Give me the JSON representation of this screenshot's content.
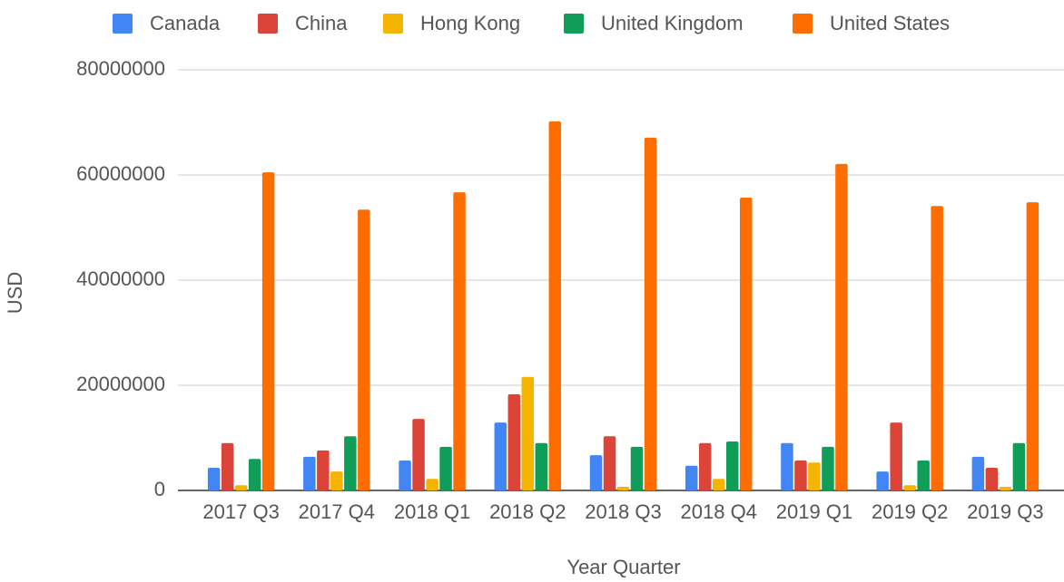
{
  "chart_data": {
    "type": "bar",
    "categories": [
      "2017 Q3",
      "2017 Q4",
      "2018 Q1",
      "2018 Q2",
      "2018 Q3",
      "2018 Q4",
      "2019 Q1",
      "2019 Q2",
      "2019 Q3"
    ],
    "series": [
      {
        "name": "Canada",
        "color": "#4285f4",
        "values": [
          4300000,
          6400000,
          5700000,
          12900000,
          6700000,
          4700000,
          9000000,
          3600000,
          6400000
        ]
      },
      {
        "name": "China",
        "color": "#db4437",
        "values": [
          9000000,
          7600000,
          13600000,
          18300000,
          10300000,
          9000000,
          5700000,
          12900000,
          4300000
        ]
      },
      {
        "name": "Hong Kong",
        "color": "#f4b400",
        "values": [
          1000000,
          3600000,
          2200000,
          21600000,
          700000,
          2200000,
          5300000,
          1000000,
          700000
        ]
      },
      {
        "name": "United Kingdom",
        "color": "#0f9d58",
        "values": [
          6000000,
          10300000,
          8300000,
          9000000,
          8300000,
          9300000,
          8300000,
          5700000,
          9000000
        ]
      },
      {
        "name": "United States",
        "color": "#ff6d00",
        "values": [
          60500000,
          53400000,
          56700000,
          70200000,
          67100000,
          55700000,
          62100000,
          54100000,
          54800000
        ]
      }
    ],
    "ylim": [
      0,
      80000000
    ],
    "yticks": [
      0,
      20000000,
      40000000,
      60000000,
      80000000
    ],
    "x_label": "Year Quarter",
    "y_label": "USD",
    "grid": true,
    "legend": "top"
  }
}
